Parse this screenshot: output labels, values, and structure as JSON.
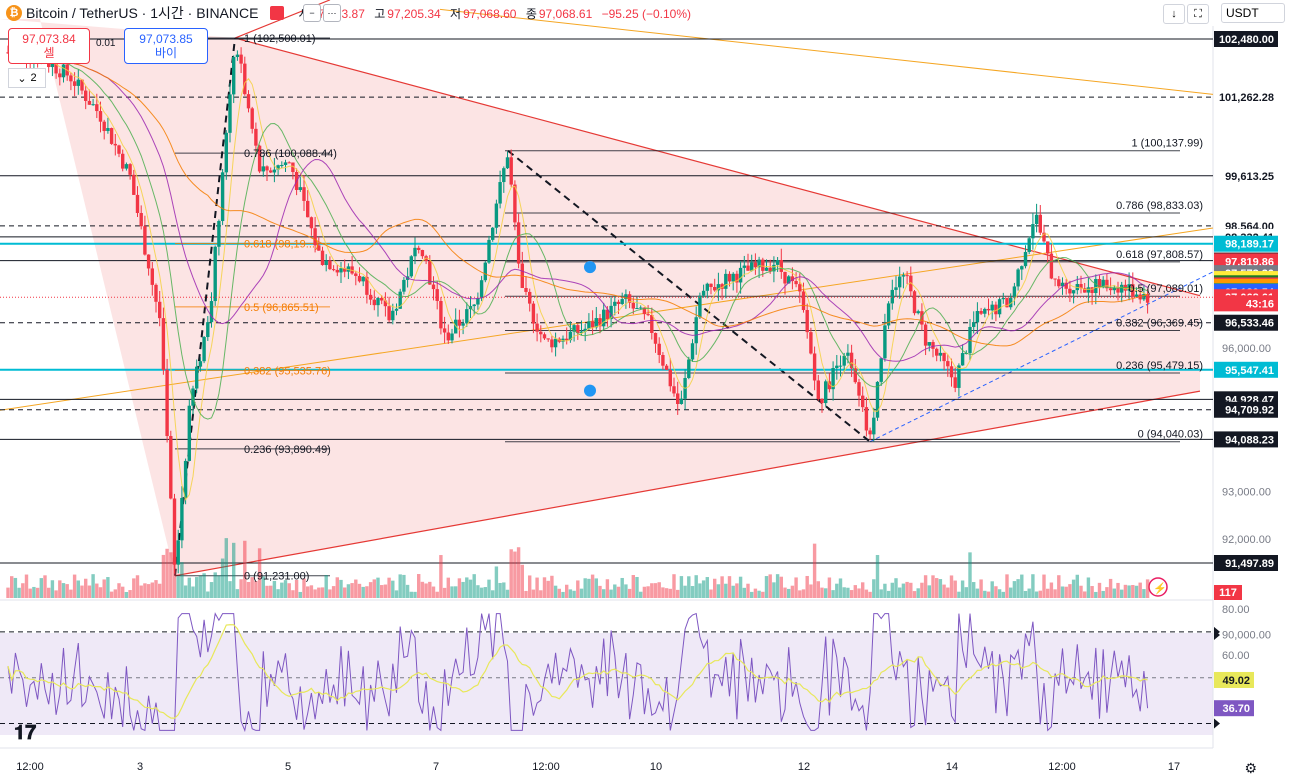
{
  "header": {
    "symbol": "Bitcoin / TetherUS · 1시간 · BINANCE",
    "open_label": "시",
    "open": "97,163.87",
    "high_label": "고",
    "high": "97,205.34",
    "low_label": "저",
    "low": "97,068.60",
    "close_label": "종",
    "close": "97,068.61",
    "change": "−95.25 (−0.10%)"
  },
  "trade": {
    "sell_price": "97,073.84",
    "sell_label": "셀",
    "buy_price": "97,073.85",
    "buy_label": "바이",
    "spread": "0.01"
  },
  "collapse": {
    "count": "2"
  },
  "currency": "USDT",
  "icons": {
    "logo": "btc-icon",
    "flag": "flag-icon",
    "download": "download-icon",
    "fullscreen": "fullscreen-icon",
    "settings": "gear-icon",
    "lightning": "lightning-icon",
    "alarm": "alarm-icon",
    "tradingview": "tradingview-logo"
  },
  "colors": {
    "up": "#089981",
    "down": "#f23645",
    "triangle_fill": "#fbd8d8",
    "rsi_band": "#ede7f6",
    "rsi_line": "#7e57c2",
    "rsi_ma": "#e8e85a",
    "fib_orange": "#f57c00"
  },
  "chart_data": [
    {
      "type": "candlestick",
      "title": "Bitcoin / TetherUS · 1시간 · BINANCE",
      "ylim": [
        90600,
        103000
      ],
      "xlabels": [
        "12:00",
        "3",
        "5",
        "7",
        "12:00",
        "10",
        "12",
        "14",
        "12:00",
        "17"
      ],
      "price_axis_ticks": [
        "96,000.00",
        "93,000.00",
        "92,000.00",
        "90,000.00"
      ],
      "key_points": [
        {
          "label": "start",
          "price": 102200
        },
        {
          "label": "low",
          "price": 91231.0
        },
        {
          "label": "peak",
          "price": 102500.01
        },
        {
          "label": "swing high",
          "price": 100137.99
        },
        {
          "label": "swing low",
          "price": 94040.03
        },
        {
          "label": "swing high",
          "price": 98833.03
        },
        {
          "label": "last",
          "price": 97068.61
        }
      ],
      "fib_left": [
        {
          "level": "1",
          "price": "102,500.01"
        },
        {
          "level": "0.786",
          "price": "100,088.44"
        },
        {
          "level": "0.618",
          "price": "98,19..."
        },
        {
          "level": "0.5",
          "price": "96,865.51"
        },
        {
          "level": "0.382",
          "price": "95,535.76"
        },
        {
          "level": "0.236",
          "price": "93,890.49"
        },
        {
          "level": "0",
          "price": "91,231.00"
        }
      ],
      "fib_right": [
        {
          "level": "1",
          "price": "100,137.99"
        },
        {
          "level": "0.786",
          "price": "98,833.03"
        },
        {
          "level": "0.618",
          "price": "97,808.57"
        },
        {
          "level": "0.5",
          "price": "97,089.01"
        },
        {
          "level": "0.382",
          "price": "96,369.45"
        },
        {
          "level": "0.236",
          "price": "95,479.15"
        },
        {
          "level": "0",
          "price": "94,040.03"
        }
      ],
      "price_labels": [
        {
          "text": "102,480.00",
          "price": 102480,
          "bg": "#131722",
          "fg": "#ffffff"
        },
        {
          "text": "101,262.28",
          "price": 101262.28,
          "bg": "#ffffff",
          "fg": "#131722"
        },
        {
          "text": "99,613.25",
          "price": 99613.25,
          "bg": "#ffffff",
          "fg": "#131722"
        },
        {
          "text": "98,564.00",
          "price": 98564,
          "bg": "#ffffff",
          "fg": "#131722"
        },
        {
          "text": "98,332.41",
          "price": 98332.41,
          "bg": "#ffffff",
          "fg": "#131722"
        },
        {
          "text": "98,189.17",
          "price": 98189.17,
          "bg": "#00bcd4",
          "fg": "#ffffff"
        },
        {
          "text": "97,836.00",
          "price": 97836,
          "bg": "#131722",
          "fg": "#ffffff"
        },
        {
          "text": "97,819.86",
          "price": 97819.86,
          "bg": "#f23645",
          "fg": "#ffffff"
        },
        {
          "text": "97,573.20",
          "price": 97573.2,
          "bg": "#787b86",
          "fg": "#ffffff"
        },
        {
          "text": "97,448.73",
          "price": 97448.73,
          "bg": "#ffeb3b",
          "fg": "#131722"
        },
        {
          "text": "97,360.36",
          "price": 97360.36,
          "bg": "#1b7a28",
          "fg": "#ffffff"
        },
        {
          "text": "97,314.78",
          "price": 97314.78,
          "bg": "#f23645",
          "fg": "#ffffff"
        },
        {
          "text": "97,286.06",
          "price": 97286.06,
          "bg": "#ff9800",
          "fg": "#ffffff"
        },
        {
          "text": "97,192.87",
          "price": 97192.87,
          "bg": "#089981",
          "fg": "#ffffff"
        },
        {
          "text": "97,180.54",
          "price": 97180.54,
          "bg": "#2962ff",
          "fg": "#ffffff"
        },
        {
          "text": "97,068.61",
          "price": 97068.61,
          "bg": "#f23645",
          "fg": "#ffffff"
        },
        {
          "text": "43:16",
          "price": 96940,
          "bg": "#f23645",
          "fg": "#ffffff"
        },
        {
          "text": "96,533.46",
          "price": 96533.46,
          "bg": "#131722",
          "fg": "#ffffff"
        },
        {
          "text": "95,547.41",
          "price": 95547.41,
          "bg": "#00bcd4",
          "fg": "#ffffff"
        },
        {
          "text": "94,928.47",
          "price": 94928.47,
          "bg": "#131722",
          "fg": "#ffffff"
        },
        {
          "text": "94,709.92",
          "price": 94709.92,
          "bg": "#131722",
          "fg": "#ffffff"
        },
        {
          "text": "94,088.23",
          "price": 94088.23,
          "bg": "#131722",
          "fg": "#ffffff"
        },
        {
          "text": "91,497.89",
          "price": 91497.89,
          "bg": "#131722",
          "fg": "#ffffff"
        }
      ],
      "horizontal_lines": [
        {
          "price": 102480,
          "style": "solid"
        },
        {
          "price": 101262.28,
          "style": "dash"
        },
        {
          "price": 99613.25,
          "style": "solid"
        },
        {
          "price": 98564,
          "style": "dash"
        },
        {
          "price": 98332.41,
          "style": "solid"
        },
        {
          "price": 98189.17,
          "style": "cyan"
        },
        {
          "price": 97836,
          "style": "solid"
        },
        {
          "price": 96533.46,
          "style": "dash"
        },
        {
          "price": 95547.41,
          "style": "cyan"
        },
        {
          "price": 94928.47,
          "style": "solid"
        },
        {
          "price": 94709.92,
          "style": "dash"
        },
        {
          "price": 94088.23,
          "style": "solid"
        },
        {
          "price": 91497.89,
          "style": "solid"
        }
      ]
    },
    {
      "type": "bar",
      "title": "Volume",
      "last_value": "117"
    },
    {
      "type": "line",
      "title": "RSI",
      "ylim": [
        25,
        80
      ],
      "ticks": [
        "80.00",
        "60.00"
      ],
      "rsi_value": "36.70",
      "rsi_ma_value": "49.02",
      "band": [
        30,
        70
      ]
    }
  ]
}
